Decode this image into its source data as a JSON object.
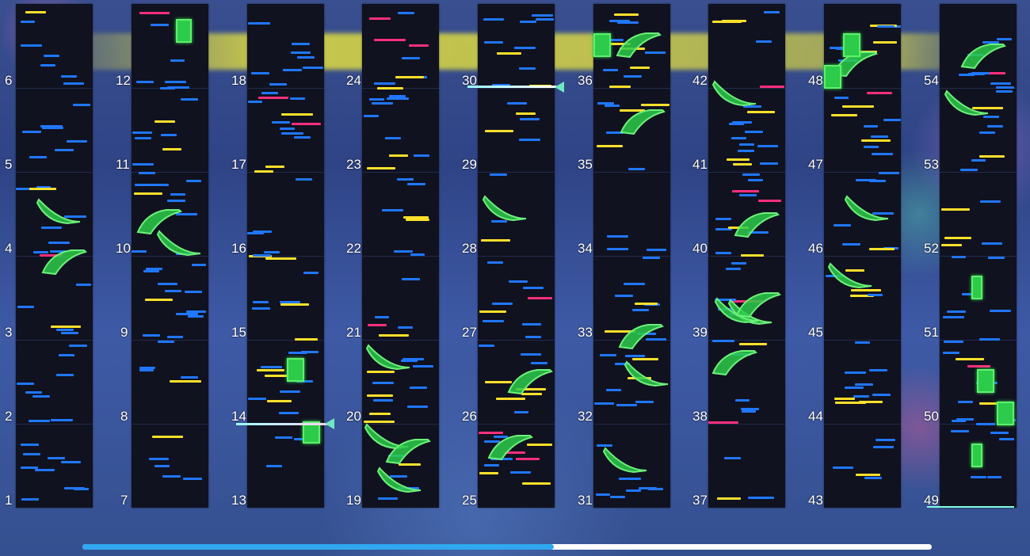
{
  "measures": [
    "1",
    "2",
    "3",
    "4",
    "5",
    "6",
    "7",
    "8",
    "9",
    "10",
    "11",
    "12",
    "13",
    "14",
    "15",
    "16",
    "17",
    "18",
    "19",
    "20",
    "21",
    "22",
    "23",
    "24",
    "25",
    "26",
    "27",
    "28",
    "29",
    "30",
    "31",
    "32",
    "33",
    "34",
    "35",
    "36",
    "37",
    "38",
    "39",
    "40",
    "41",
    "42",
    "43",
    "44",
    "45",
    "46",
    "47",
    "48",
    "49",
    "50",
    "51",
    "52",
    "53",
    "54"
  ],
  "colors": {
    "tap": "#2077ff",
    "drag": "#ffe02a",
    "flick": "#ff2f7d",
    "slide": "#2dcb4a"
  },
  "scroll": {
    "progress": 0.555
  },
  "icons": {
    "hold_end": "hold-end-arrow-icon"
  }
}
